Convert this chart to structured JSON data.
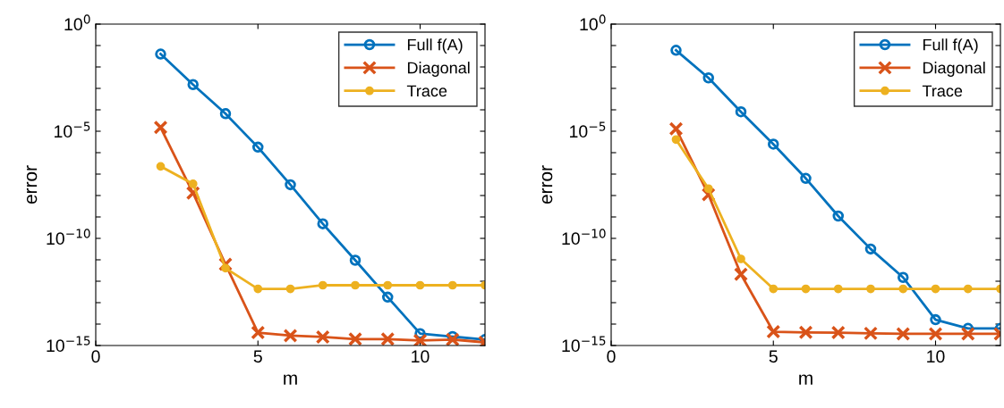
{
  "chart_data": [
    {
      "type": "line",
      "xlabel": "m",
      "ylabel": "error",
      "log": "y",
      "legend": "top right",
      "grid": false,
      "x": [
        2,
        3,
        4,
        5,
        6,
        7,
        8,
        9,
        10,
        11,
        12
      ],
      "xlim": [
        0,
        12
      ],
      "xticks": [
        0,
        5,
        10
      ],
      "ylim": [
        1e-15,
        1
      ],
      "yticks": [
        {
          "value": 1,
          "label": "10$^{0}$"
        },
        {
          "value": 0.1,
          "label": null
        },
        {
          "value": 0.01,
          "label": null
        },
        {
          "value": 0.001,
          "label": null
        },
        {
          "value": 0.0001,
          "label": null
        },
        {
          "value": 1e-05,
          "label": "10$^{−5}$"
        },
        {
          "value": 1e-06,
          "label": null
        },
        {
          "value": 1e-07,
          "label": null
        },
        {
          "value": 1e-08,
          "label": null
        },
        {
          "value": 1e-09,
          "label": null
        },
        {
          "value": 1e-10,
          "label": "10$^{−10}$"
        },
        {
          "value": 1e-11,
          "label": null
        },
        {
          "value": 1e-12,
          "label": null
        },
        {
          "value": 1e-13,
          "label": null
        },
        {
          "value": 1e-14,
          "label": null
        },
        {
          "value": 1e-15,
          "label": "10$^{−15}$"
        }
      ],
      "series": [
        {
          "name": "Full f(A)",
          "color": "#0072bd",
          "marker": "circle",
          "values": [
            0.04,
            0.0015,
            6.6e-05,
            1.8e-06,
            3.2e-08,
            4.8e-10,
            9.5e-12,
            1.8e-13,
            3.6e-15,
            2.6e-15,
            1.9e-15
          ]
        },
        {
          "name": "Diagonal",
          "color": "#d95319",
          "marker": "cross",
          "values": [
            1.5e-05,
            1.3e-08,
            6.2e-12,
            4e-15,
            2.9e-15,
            2.5e-15,
            2e-15,
            2e-15,
            1.7e-15,
            1.9e-15,
            1.4e-15
          ]
        },
        {
          "name": "Trace",
          "color": "#edb120",
          "marker": "dot",
          "values": [
            2.3e-07,
            3.5e-08,
            4.1e-12,
            4.4e-13,
            4.4e-13,
            6.5e-13,
            6.5e-13,
            6.5e-13,
            6.5e-13,
            6.5e-13,
            6.5e-13
          ]
        }
      ]
    },
    {
      "type": "line",
      "xlabel": "m",
      "ylabel": "error",
      "log": "y",
      "legend": "top right",
      "grid": false,
      "x": [
        2,
        3,
        4,
        5,
        6,
        7,
        8,
        9,
        10,
        11,
        12
      ],
      "xlim": [
        0,
        12
      ],
      "xticks": [
        0,
        5,
        10
      ],
      "ylim": [
        1e-15,
        1
      ],
      "yticks": [
        {
          "value": 1,
          "label": "10$^{0}$"
        },
        {
          "value": 0.1,
          "label": null
        },
        {
          "value": 0.01,
          "label": null
        },
        {
          "value": 0.001,
          "label": null
        },
        {
          "value": 0.0001,
          "label": null
        },
        {
          "value": 1e-05,
          "label": "10$^{−5}$"
        },
        {
          "value": 1e-06,
          "label": null
        },
        {
          "value": 1e-07,
          "label": null
        },
        {
          "value": 1e-08,
          "label": null
        },
        {
          "value": 1e-09,
          "label": null
        },
        {
          "value": 1e-10,
          "label": "10$^{−10}$"
        },
        {
          "value": 1e-11,
          "label": null
        },
        {
          "value": 1e-12,
          "label": null
        },
        {
          "value": 1e-13,
          "label": null
        },
        {
          "value": 1e-14,
          "label": null
        },
        {
          "value": 1e-15,
          "label": "10$^{−15}$"
        }
      ],
      "series": [
        {
          "name": "Full f(A)",
          "color": "#0072bd",
          "marker": "circle",
          "values": [
            0.06,
            0.0031,
            8.1e-05,
            2.5e-06,
            6.3e-08,
            1.1e-09,
            3.2e-11,
            1.5e-12,
            1.6e-14,
            6.3e-15,
            6.3e-15
          ]
        },
        {
          "name": "Diagonal",
          "color": "#d95319",
          "marker": "cross",
          "values": [
            1.3e-05,
            1.1e-08,
            2.1e-12,
            4.4e-15,
            4.1e-15,
            4e-15,
            3.7e-15,
            3.5e-15,
            3.5e-15,
            3.5e-15,
            3.5e-15
          ]
        },
        {
          "name": "Trace",
          "color": "#edb120",
          "marker": "dot",
          "values": [
            4.1e-06,
            2.1e-08,
            1.1e-11,
            4.4e-13,
            4.4e-13,
            4.4e-13,
            4.4e-13,
            4.4e-13,
            4.4e-13,
            4.4e-13,
            4.4e-13
          ]
        }
      ]
    }
  ]
}
